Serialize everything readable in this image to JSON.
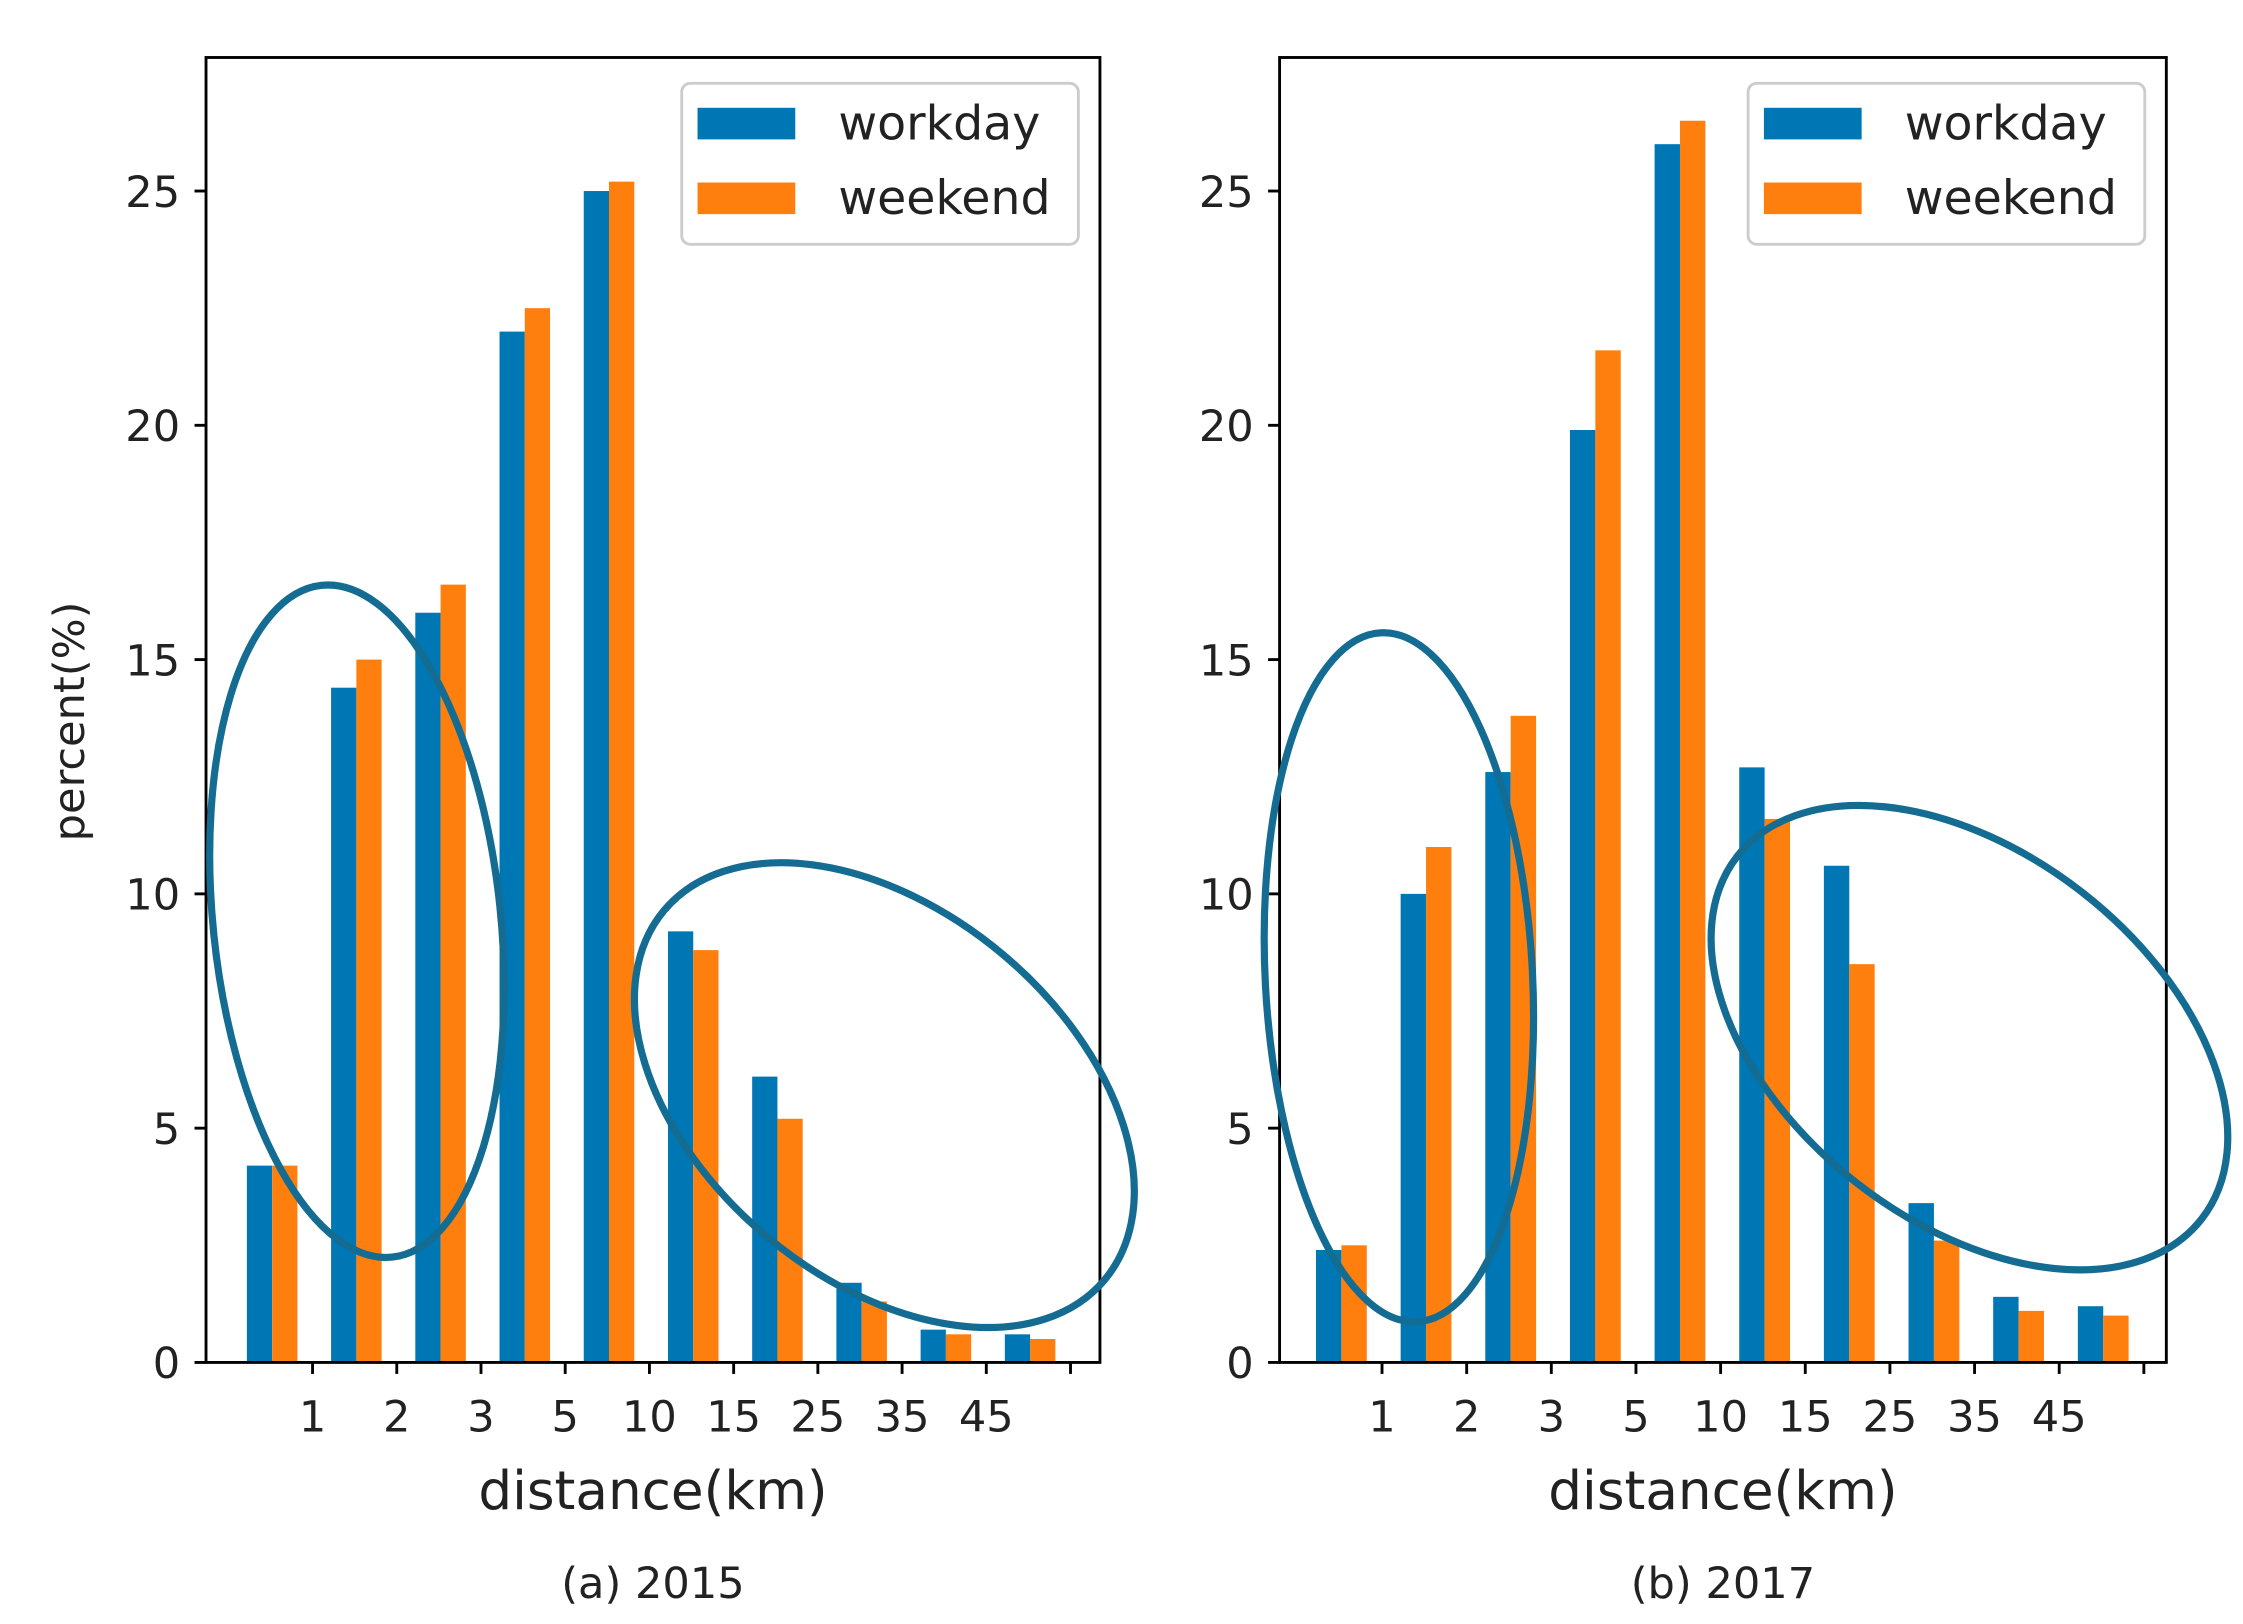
{
  "colors": {
    "workday": "#0077b5",
    "weekend": "#ff7f0e",
    "annotation": "#146c92"
  },
  "chart_data": [
    {
      "type": "bar",
      "caption": "(a) 2015",
      "xlabel": "distance(km)",
      "ylabel": "percent(%)",
      "xtick_labels": [
        "1",
        "2",
        "3",
        "5",
        "10",
        "15",
        "25",
        "35",
        "45",
        ""
      ],
      "yticks": [
        0,
        5,
        10,
        15,
        20,
        25
      ],
      "ylim": [
        0,
        27.85
      ],
      "legend": {
        "placement": "top-right",
        "entries": [
          "workday",
          "weekend"
        ]
      },
      "grid": false,
      "series": [
        {
          "name": "workday",
          "values": [
            4.2,
            14.4,
            16.0,
            22.0,
            25.0,
            9.2,
            6.1,
            1.7,
            0.7,
            0.6
          ]
        },
        {
          "name": "weekend",
          "values": [
            4.2,
            15.0,
            16.6,
            22.5,
            25.2,
            8.8,
            5.2,
            1.3,
            0.6,
            0.5
          ]
        }
      ]
    },
    {
      "type": "bar",
      "caption": "(b) 2017",
      "xlabel": "distance(km)",
      "ylabel": "",
      "xtick_labels": [
        "1",
        "2",
        "3",
        "5",
        "10",
        "15",
        "25",
        "35",
        "45",
        ""
      ],
      "yticks": [
        0,
        5,
        10,
        15,
        20,
        25
      ],
      "ylim": [
        0,
        27.85
      ],
      "legend": {
        "placement": "top-right",
        "entries": [
          "workday",
          "weekend"
        ]
      },
      "grid": false,
      "series": [
        {
          "name": "workday",
          "values": [
            2.4,
            10.0,
            12.6,
            19.9,
            26.0,
            12.7,
            10.6,
            3.4,
            1.4,
            1.2
          ]
        },
        {
          "name": "weekend",
          "values": [
            2.5,
            11.0,
            13.8,
            21.6,
            26.5,
            11.6,
            8.5,
            2.6,
            1.1,
            1.0
          ]
        }
      ]
    }
  ]
}
